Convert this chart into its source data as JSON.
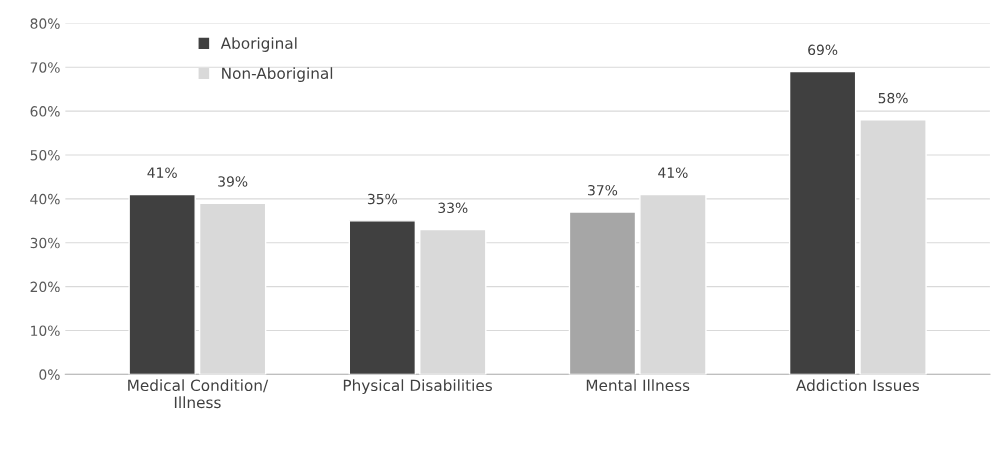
{
  "chart_data": {
    "type": "bar",
    "categories": [
      "Medical Condition/\nIllness",
      "Physical Disabilities",
      "Mental Illness",
      "Addiction Issues"
    ],
    "series": [
      {
        "name": "Aboriginal",
        "color": "#404040",
        "colors": [
          "#404040",
          "#404040",
          "#a6a6a6",
          "#404040"
        ],
        "values": [
          41,
          35,
          37,
          69
        ],
        "value_labels": [
          "41%",
          "35%",
          "37%",
          "69%"
        ]
      },
      {
        "name": "Non-Aboriginal",
        "color": "#d9d9d9",
        "values": [
          39,
          33,
          41,
          58
        ],
        "value_labels": [
          "39%",
          "33%",
          "41%",
          "58%"
        ]
      }
    ],
    "ylim": [
      0,
      80
    ],
    "yticks": [
      {
        "value": 0,
        "label": "0%"
      },
      {
        "value": 10,
        "label": "10%"
      },
      {
        "value": 20,
        "label": "20%"
      },
      {
        "value": 30,
        "label": "30%"
      },
      {
        "value": 40,
        "label": "40%"
      },
      {
        "value": 50,
        "label": "50%"
      },
      {
        "value": 60,
        "label": "60%"
      },
      {
        "value": 70,
        "label": "70%"
      },
      {
        "value": 80,
        "label": "80%"
      }
    ],
    "grid": "y",
    "legend": "top left"
  }
}
